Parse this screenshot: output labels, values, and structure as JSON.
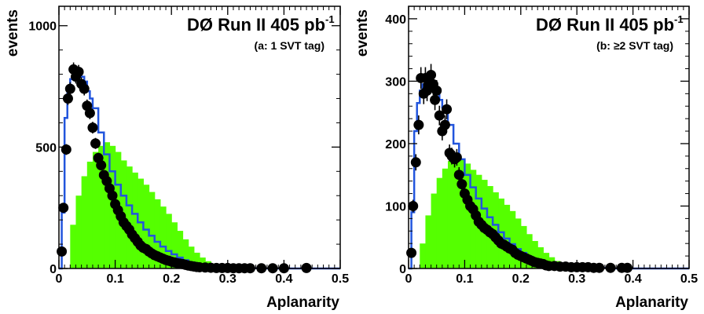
{
  "chart_data": [
    {
      "type": "histogram",
      "title": "DØ Run II  405 pb",
      "title_superscript": "-1",
      "subtitle": "(a: 1 SVT tag)",
      "xlabel": "Aplanarity",
      "ylabel": "events",
      "xlim": [
        0,
        0.5
      ],
      "ylim": [
        0,
        1080
      ],
      "x_ticks": [
        "0",
        "0.1",
        "0.2",
        "0.3",
        "0.4",
        "0.5"
      ],
      "y_ticks": [
        "0",
        "500",
        "1000"
      ],
      "y_tick_values": [
        0,
        500,
        1000
      ],
      "bin_width": 0.005,
      "colors": {
        "filled_hist": "#55ff00",
        "line_hist": "#2255dd",
        "points": "#000000"
      },
      "filled_hist": {
        "x": [
          0.01,
          0.02,
          0.03,
          0.04,
          0.05,
          0.06,
          0.07,
          0.08,
          0.09,
          0.1,
          0.11,
          0.12,
          0.13,
          0.14,
          0.15,
          0.16,
          0.17,
          0.18,
          0.19,
          0.2,
          0.21,
          0.22,
          0.23,
          0.24,
          0.25,
          0.26,
          0.27,
          0.28,
          0.29,
          0.3,
          0.32,
          0.35,
          0.4,
          0.45,
          0.5
        ],
        "y": [
          0,
          180,
          300,
          380,
          440,
          480,
          505,
          520,
          505,
          480,
          445,
          420,
          395,
          370,
          345,
          315,
          285,
          255,
          225,
          190,
          155,
          120,
          90,
          65,
          45,
          30,
          20,
          14,
          9,
          5,
          2,
          0,
          0,
          0,
          0
        ]
      },
      "line_hist": {
        "x": [
          0,
          0.005,
          0.01,
          0.015,
          0.02,
          0.025,
          0.03,
          0.035,
          0.04,
          0.045,
          0.05,
          0.055,
          0.06,
          0.07,
          0.08,
          0.09,
          0.1,
          0.11,
          0.12,
          0.13,
          0.14,
          0.15,
          0.16,
          0.17,
          0.18,
          0.19,
          0.2,
          0.21,
          0.22,
          0.23,
          0.24,
          0.25,
          0.26,
          0.28,
          0.3,
          0.33,
          0.36,
          0.4,
          0.45,
          0.5
        ],
        "y": [
          0,
          230,
          620,
          730,
          780,
          800,
          810,
          805,
          790,
          770,
          730,
          700,
          660,
          560,
          470,
          400,
          345,
          300,
          260,
          225,
          190,
          160,
          135,
          110,
          90,
          72,
          58,
          45,
          34,
          25,
          18,
          12,
          8,
          5,
          3,
          1,
          0,
          0,
          0,
          0
        ]
      },
      "points": {
        "x": [
          0.005,
          0.008,
          0.013,
          0.016,
          0.02,
          0.026,
          0.03,
          0.035,
          0.04,
          0.045,
          0.05,
          0.055,
          0.06,
          0.065,
          0.07,
          0.075,
          0.08,
          0.085,
          0.09,
          0.095,
          0.1,
          0.105,
          0.11,
          0.115,
          0.12,
          0.125,
          0.13,
          0.135,
          0.14,
          0.145,
          0.15,
          0.155,
          0.16,
          0.165,
          0.17,
          0.175,
          0.18,
          0.185,
          0.19,
          0.195,
          0.2,
          0.205,
          0.21,
          0.215,
          0.22,
          0.225,
          0.23,
          0.235,
          0.24,
          0.245,
          0.25,
          0.26,
          0.27,
          0.28,
          0.29,
          0.3,
          0.31,
          0.32,
          0.33,
          0.34,
          0.36,
          0.38,
          0.4,
          0.44
        ],
        "y": [
          70,
          250,
          490,
          700,
          740,
          820,
          790,
          810,
          760,
          740,
          670,
          640,
          580,
          515,
          455,
          425,
          385,
          360,
          330,
          300,
          265,
          240,
          215,
          190,
          175,
          160,
          140,
          125,
          110,
          95,
          85,
          80,
          70,
          62,
          55,
          50,
          45,
          40,
          35,
          32,
          28,
          25,
          22,
          20,
          18,
          15,
          12,
          10,
          8,
          6,
          5,
          4,
          3,
          2,
          2,
          2,
          1,
          1,
          1,
          1,
          1,
          1,
          1,
          2
        ]
      }
    },
    {
      "type": "histogram",
      "title": "DØ Run II  405 pb",
      "title_superscript": "-1",
      "subtitle": "(b: ≥2 SVT tag)",
      "xlabel": "Aplanarity",
      "ylabel": "events",
      "xlim": [
        0,
        0.5
      ],
      "ylim": [
        0,
        420
      ],
      "x_ticks": [
        "0",
        "0.1",
        "0.2",
        "0.3",
        "0.4",
        "0.5"
      ],
      "y_ticks": [
        "0",
        "100",
        "200",
        "300",
        "400"
      ],
      "y_tick_values": [
        0,
        100,
        200,
        300,
        400
      ],
      "bin_width": 0.005,
      "colors": {
        "filled_hist": "#55ff00",
        "line_hist": "#2255dd",
        "points": "#000000"
      },
      "filled_hist": {
        "x": [
          0.01,
          0.02,
          0.03,
          0.04,
          0.05,
          0.06,
          0.07,
          0.08,
          0.09,
          0.1,
          0.11,
          0.12,
          0.13,
          0.14,
          0.15,
          0.16,
          0.17,
          0.18,
          0.19,
          0.2,
          0.21,
          0.22,
          0.23,
          0.24,
          0.25,
          0.26,
          0.27,
          0.28,
          0.29,
          0.3,
          0.32,
          0.35,
          0.4,
          0.45,
          0.5
        ],
        "y": [
          0,
          40,
          85,
          120,
          145,
          160,
          172,
          180,
          176,
          168,
          158,
          150,
          142,
          132,
          122,
          112,
          102,
          92,
          80,
          68,
          55,
          44,
          34,
          25,
          18,
          12,
          8,
          5,
          3,
          2,
          1,
          0,
          0,
          0,
          0
        ]
      },
      "line_hist": {
        "x": [
          0,
          0.005,
          0.01,
          0.015,
          0.02,
          0.025,
          0.03,
          0.035,
          0.04,
          0.045,
          0.05,
          0.055,
          0.06,
          0.07,
          0.08,
          0.09,
          0.1,
          0.11,
          0.12,
          0.13,
          0.14,
          0.15,
          0.16,
          0.17,
          0.18,
          0.19,
          0.2,
          0.21,
          0.22,
          0.23,
          0.24,
          0.25,
          0.26,
          0.28,
          0.3,
          0.33,
          0.36,
          0.4,
          0.45,
          0.5
        ],
        "y": [
          0,
          90,
          220,
          265,
          285,
          295,
          300,
          300,
          295,
          288,
          280,
          270,
          258,
          230,
          200,
          175,
          150,
          130,
          112,
          96,
          82,
          70,
          58,
          48,
          39,
          31,
          25,
          19,
          15,
          11,
          8,
          6,
          4,
          3,
          2,
          1,
          0,
          0,
          0,
          0
        ]
      },
      "points": {
        "x": [
          0.005,
          0.008,
          0.013,
          0.018,
          0.022,
          0.027,
          0.03,
          0.033,
          0.036,
          0.04,
          0.044,
          0.047,
          0.05,
          0.055,
          0.06,
          0.065,
          0.068,
          0.073,
          0.077,
          0.082,
          0.086,
          0.09,
          0.095,
          0.1,
          0.105,
          0.11,
          0.115,
          0.12,
          0.125,
          0.13,
          0.135,
          0.14,
          0.145,
          0.15,
          0.155,
          0.16,
          0.165,
          0.17,
          0.175,
          0.18,
          0.185,
          0.19,
          0.195,
          0.2,
          0.205,
          0.21,
          0.215,
          0.22,
          0.225,
          0.23,
          0.235,
          0.24,
          0.245,
          0.25,
          0.26,
          0.27,
          0.28,
          0.29,
          0.3,
          0.31,
          0.32,
          0.33,
          0.34,
          0.36,
          0.38,
          0.39
        ],
        "y": [
          25,
          100,
          170,
          230,
          305,
          280,
          305,
          285,
          295,
          310,
          295,
          270,
          285,
          245,
          220,
          230,
          255,
          185,
          180,
          175,
          178,
          150,
          135,
          120,
          110,
          100,
          95,
          85,
          75,
          70,
          65,
          62,
          58,
          55,
          50,
          45,
          40,
          38,
          35,
          32,
          30,
          25,
          22,
          20,
          18,
          16,
          14,
          12,
          10,
          9,
          8,
          7,
          5,
          4,
          4,
          3,
          3,
          2,
          2,
          2,
          2,
          1,
          1,
          1,
          1,
          1
        ]
      }
    }
  ]
}
